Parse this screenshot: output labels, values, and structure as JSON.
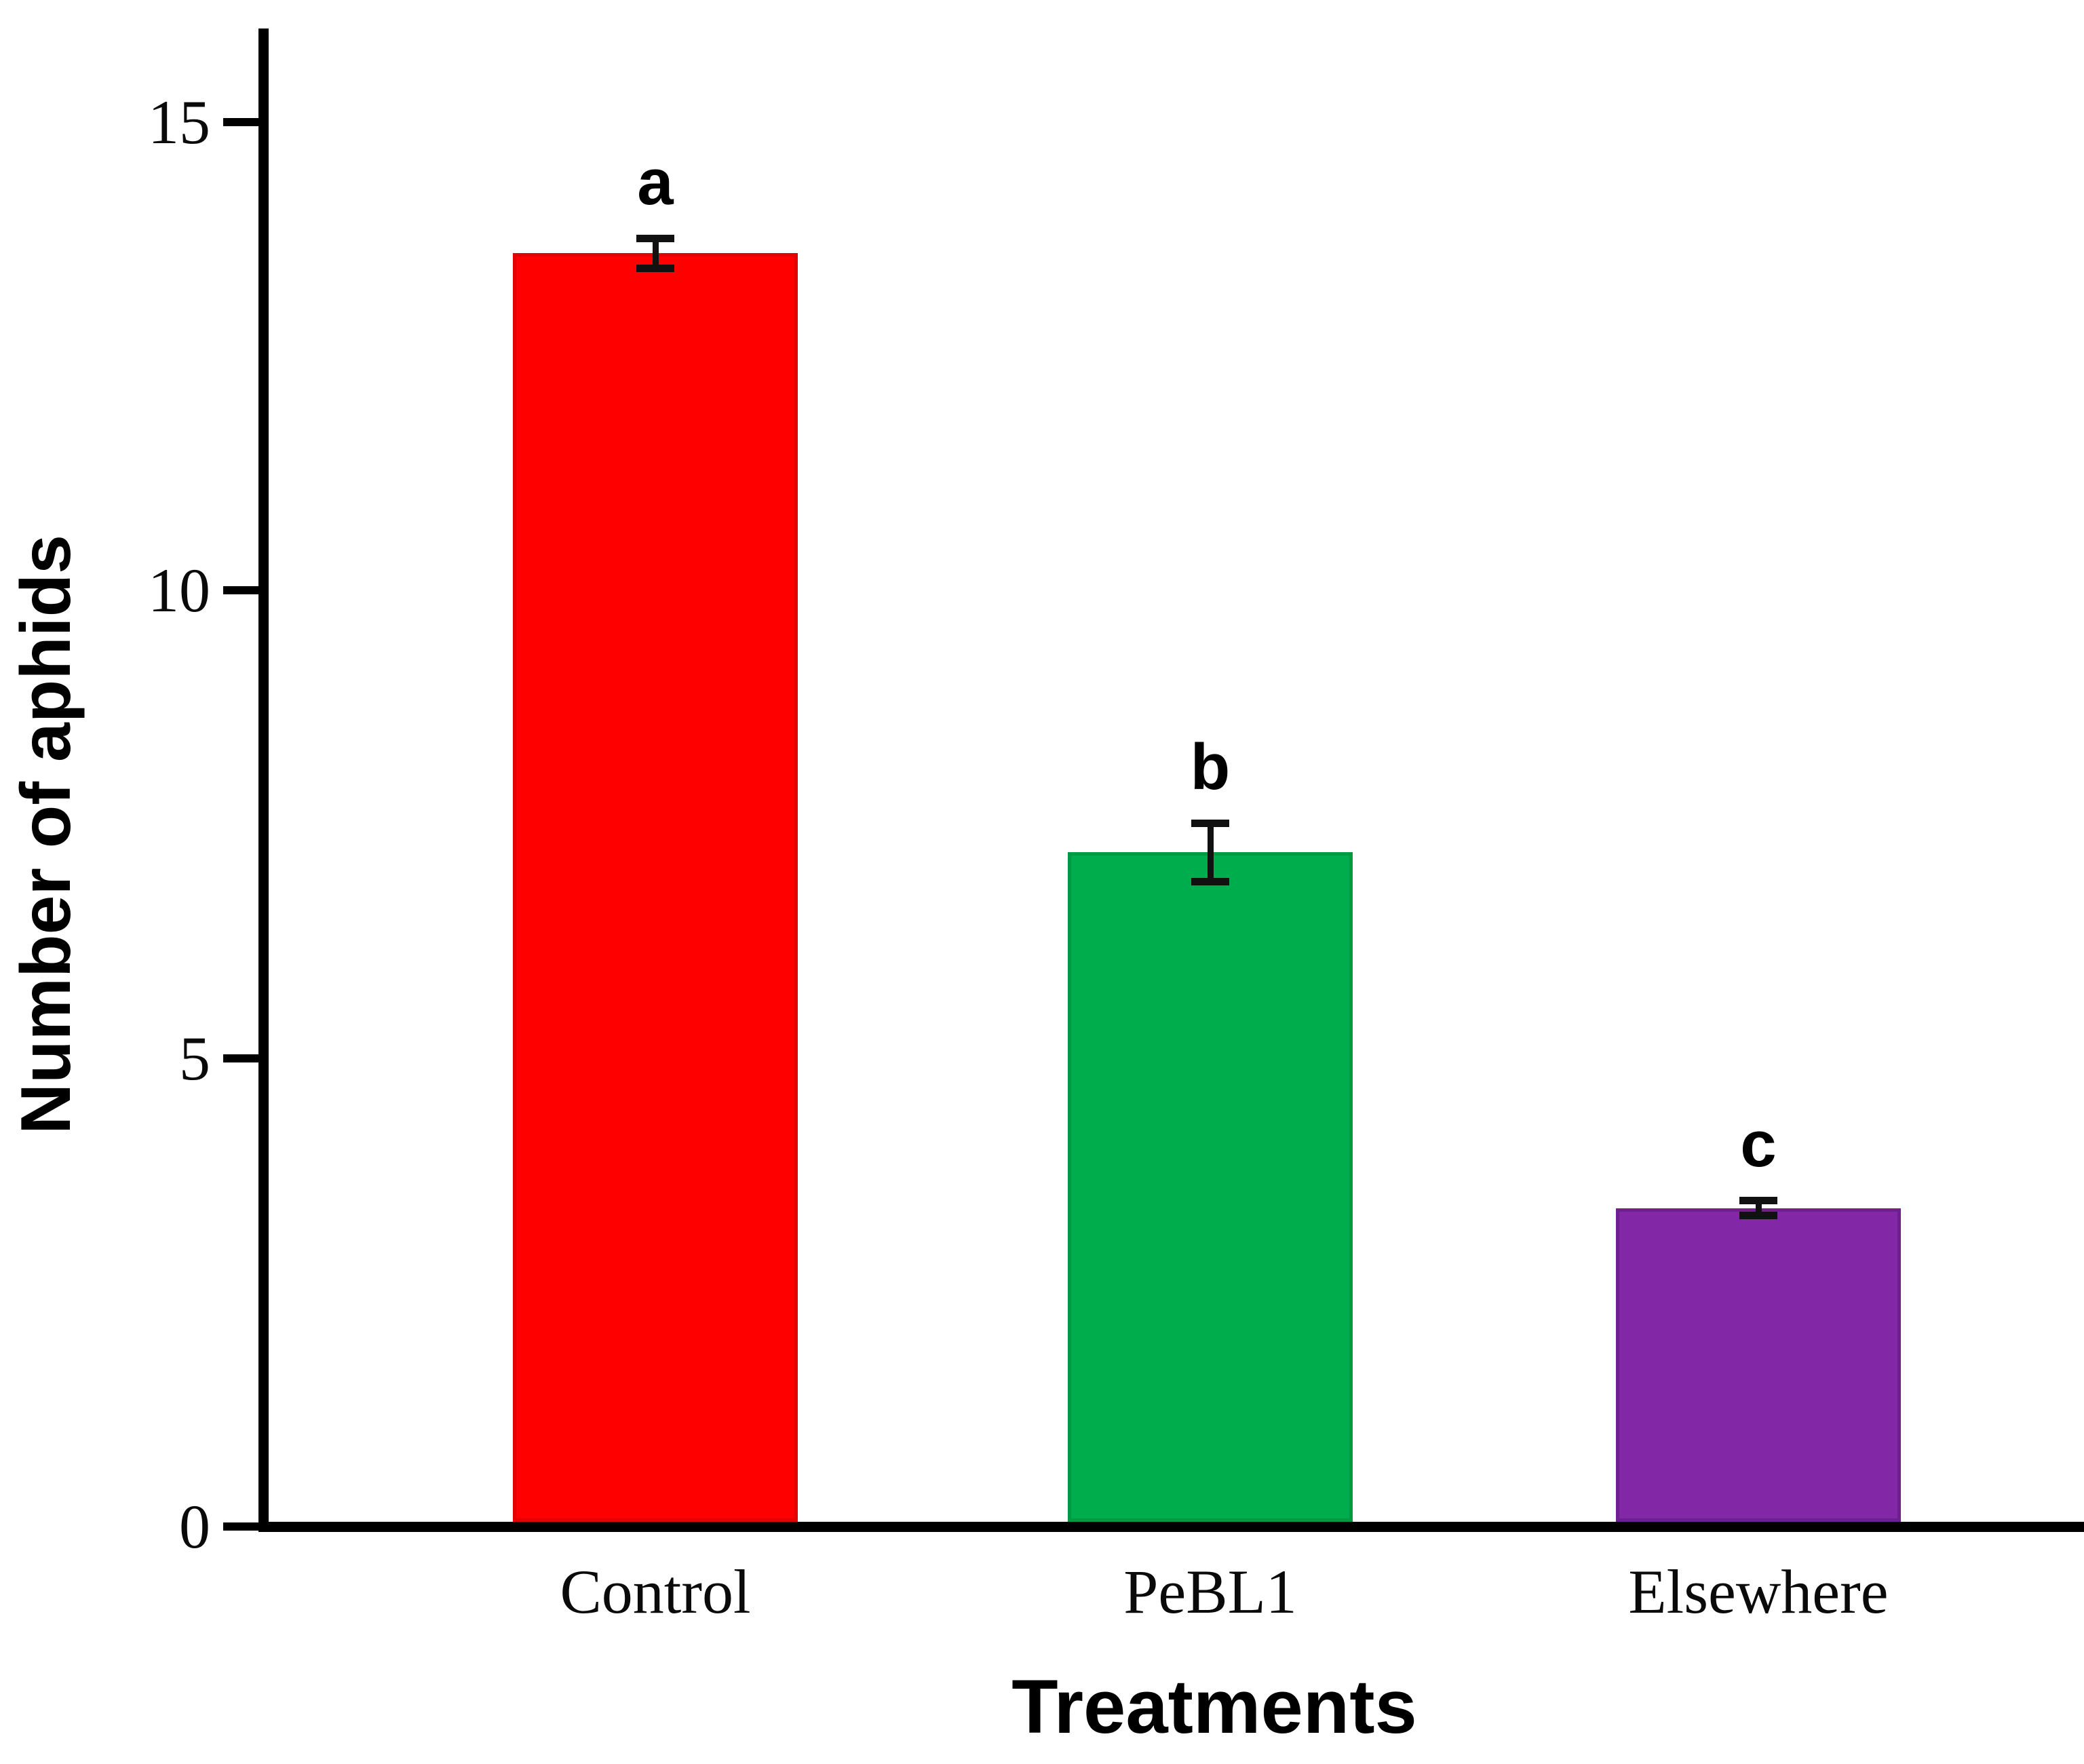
{
  "figure": {
    "background": "#ffffff",
    "axis_color": "#000000",
    "error_bar_color": "#111111",
    "text_color": "#000000"
  },
  "chart_data": {
    "type": "bar",
    "title": "",
    "xlabel": "Treatments",
    "ylabel": "Number of aphids",
    "categories": [
      "Control",
      "PeBL1",
      "Elsewhere"
    ],
    "values": [
      13.6,
      7.2,
      3.4
    ],
    "errors": [
      0.2,
      0.35,
      0.12
    ],
    "significance_letters": [
      "a",
      "b",
      "c"
    ],
    "bar_colors": [
      "#fe0000",
      "#00ad4d",
      "#8228a7"
    ],
    "bar_edge_colors": [
      "#e00404",
      "#009a43",
      "#6e2090"
    ],
    "yticks": [
      0,
      5,
      10,
      15
    ],
    "ylim": [
      0,
      16
    ],
    "grid": false,
    "legend_position": "none"
  }
}
